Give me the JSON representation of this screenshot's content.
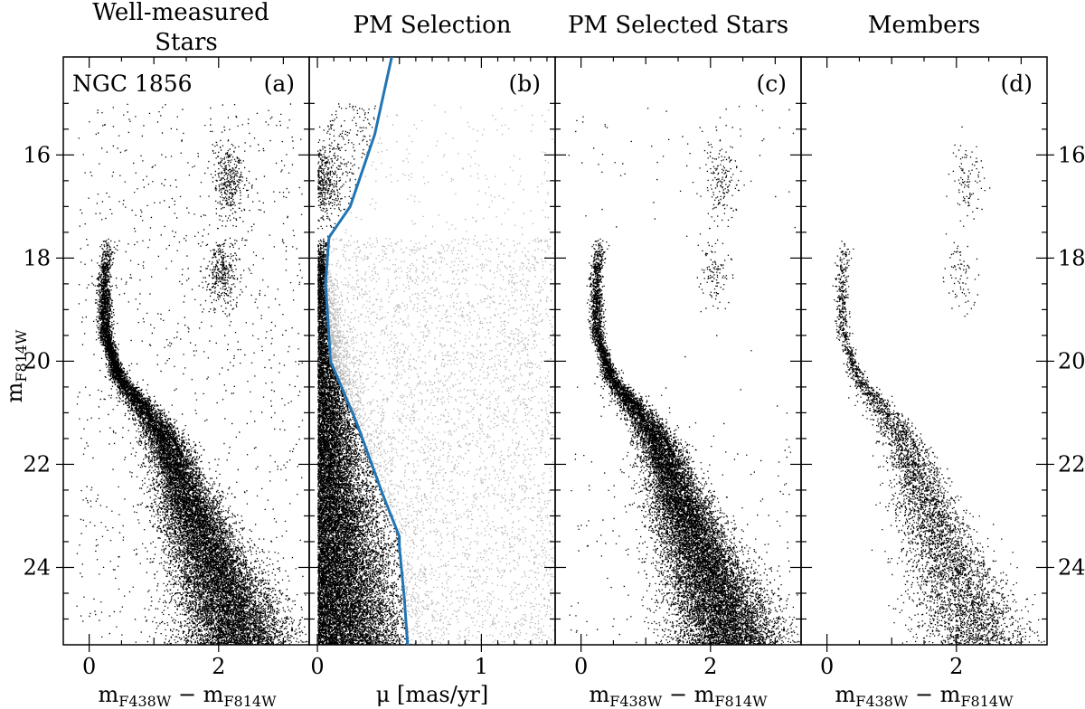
{
  "chart_data": [
    {
      "type": "scatter",
      "panel": "a",
      "title": "Well-measured\nStars",
      "tag": "(a)",
      "annotation": "NGC 1856",
      "xlabel": "m_F438W − m_F814W",
      "ylabel": "m_F814W",
      "xlim": [
        -0.4,
        3.4
      ],
      "ylim": [
        25.5,
        14.1
      ],
      "xticks": [
        0,
        2
      ],
      "yticks": [
        16,
        18,
        20,
        22,
        24
      ],
      "series": [
        {
          "values": "main sequence: color ≈0.25 at m=17.8, ≈0.4 at m=20.5, ≈1.2 at m=21.8, ≈1.6 at m=22.8, ≈2.1 at m=24.5; red clump near color 2.1, m 16.5 and 18.3"
        }
      ]
    },
    {
      "type": "scatter",
      "panel": "b",
      "title": "PM Selection",
      "tag": "(b)",
      "xlabel": "μ [mas/yr]",
      "xlim": [
        -0.05,
        1.45
      ],
      "ylim": [
        25.5,
        14.1
      ],
      "xticks": [
        0,
        1
      ],
      "selection_line": {
        "x": [
          0.46,
          0.35,
          0.2,
          0.07,
          0.05,
          0.08,
          0.24,
          0.4,
          0.5,
          0.5,
          0.53,
          0.55
        ],
        "y": [
          14.0,
          15.6,
          17.0,
          17.6,
          18.5,
          20.0,
          21.2,
          22.6,
          23.4,
          23.6,
          24.6,
          25.5
        ]
      },
      "colors": {
        "selected": "#000000",
        "rejected": "#b4b4b4",
        "line": "#2275b3"
      }
    },
    {
      "type": "scatter",
      "panel": "c",
      "title": "PM Selected Stars",
      "tag": "(c)",
      "xlabel": "m_F438W − m_F814W",
      "xlim": [
        -0.4,
        3.4
      ],
      "ylim": [
        25.5,
        14.1
      ],
      "xticks": [
        0,
        2
      ]
    },
    {
      "type": "scatter",
      "panel": "d",
      "title": "Members",
      "tag": "(d)",
      "xlabel": "m_F438W − m_F814W",
      "xlim": [
        -0.4,
        3.4
      ],
      "ylim": [
        25.5,
        14.1
      ],
      "xticks": [
        0,
        2
      ],
      "yticks": [
        16,
        18,
        20,
        22,
        24
      ]
    }
  ]
}
